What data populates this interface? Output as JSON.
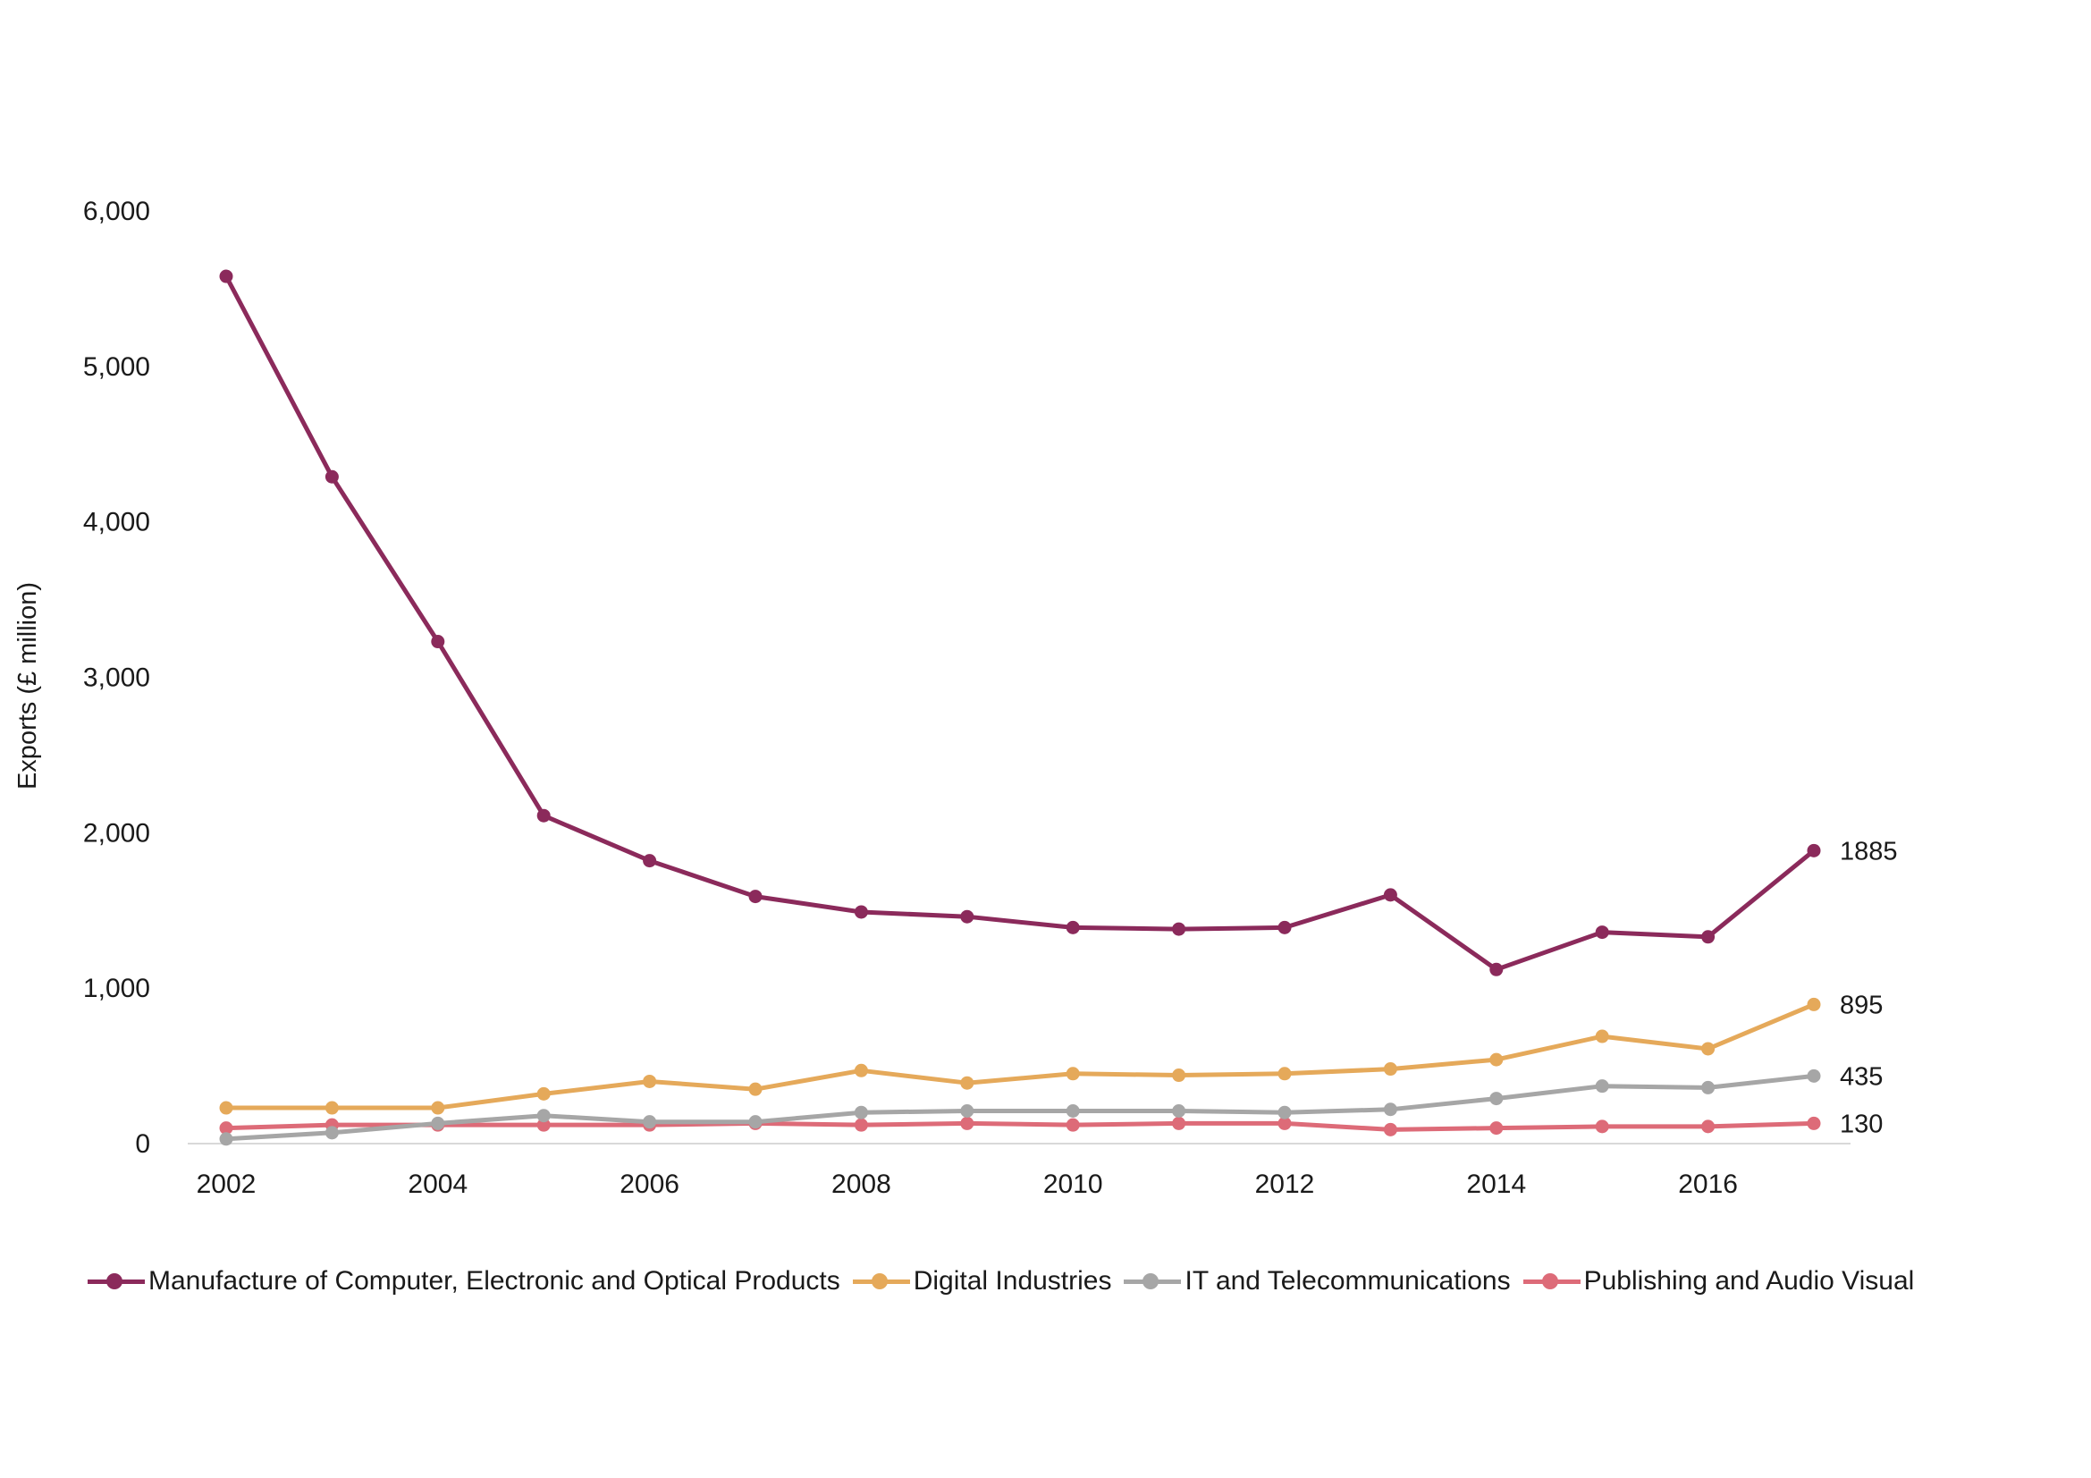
{
  "chart_data": {
    "type": "line",
    "title": "",
    "xlabel": "",
    "ylabel": "Exports (£ million)",
    "x": [
      2002,
      2003,
      2004,
      2005,
      2006,
      2007,
      2008,
      2009,
      2010,
      2011,
      2012,
      2013,
      2014,
      2015,
      2016,
      2017
    ],
    "x_tick_labels": [
      "2002",
      "2004",
      "2006",
      "2008",
      "2010",
      "2012",
      "2014",
      "2016"
    ],
    "y_tick_labels": [
      "0",
      "1,000",
      "2,000",
      "3,000",
      "4,000",
      "5,000",
      "6,000"
    ],
    "ylim": [
      0,
      6000
    ],
    "grid": false,
    "legend_position": "bottom",
    "series": [
      {
        "name": "Manufacture of Computer, Electronic and Optical Products",
        "color": "#8B2A5B",
        "values": [
          5580,
          4290,
          3230,
          2110,
          1820,
          1590,
          1490,
          1460,
          1390,
          1380,
          1390,
          1600,
          1120,
          1360,
          1330,
          1885
        ],
        "end_label": "1885"
      },
      {
        "name": "Digital Industries",
        "color": "#E5A95A",
        "values": [
          230,
          230,
          230,
          320,
          400,
          350,
          470,
          390,
          450,
          440,
          450,
          480,
          540,
          690,
          610,
          895
        ],
        "end_label": "895"
      },
      {
        "name": "IT and Telecommunications",
        "color": "#A6A6A6",
        "values": [
          30,
          70,
          130,
          180,
          140,
          140,
          200,
          210,
          210,
          210,
          200,
          220,
          290,
          370,
          360,
          435
        ],
        "end_label": "435"
      },
      {
        "name": "Publishing and Audio Visual",
        "color": "#DD6B78",
        "values": [
          100,
          120,
          120,
          120,
          120,
          130,
          120,
          130,
          120,
          130,
          130,
          90,
          100,
          110,
          110,
          130
        ],
        "end_label": "130"
      }
    ]
  }
}
